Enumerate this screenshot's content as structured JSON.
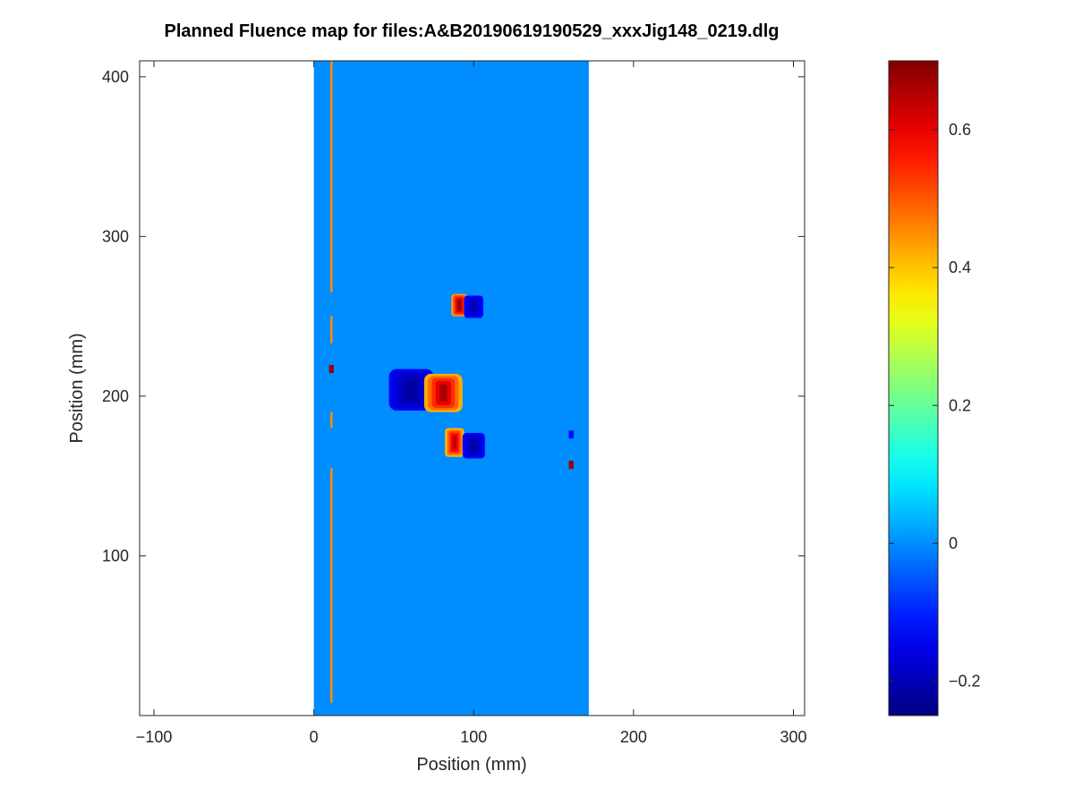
{
  "chart_data": {
    "type": "heatmap",
    "title": "Planned Fluence map for files:A&B20190619190529_xxxJig148_0219.dlg",
    "xlabel": "Position (mm)",
    "ylabel": "Position (mm)",
    "xlim": [
      -109,
      307
    ],
    "ylim": [
      0,
      410
    ],
    "xticks": [
      -100,
      0,
      100,
      200,
      300
    ],
    "xtick_labels": [
      "−100",
      "0",
      "100",
      "200",
      "300"
    ],
    "yticks": [
      100,
      200,
      300,
      400
    ],
    "ytick_labels": [
      "100",
      "200",
      "300",
      "400"
    ],
    "colormap": "jet",
    "clim": [
      -0.25,
      0.7
    ],
    "colorbar_ticks": [
      -0.2,
      0,
      0.2,
      0.4,
      0.6
    ],
    "colorbar_tick_labels": [
      "−0.2",
      "0",
      "0.2",
      "0.4",
      "0.6"
    ],
    "background_region": {
      "x": [
        0,
        172
      ],
      "y": [
        0,
        410
      ],
      "value": 0
    },
    "features": [
      {
        "kind": "strip",
        "x": 11,
        "width": 1.4,
        "y": [
          265,
          410
        ],
        "value": 0.45
      },
      {
        "kind": "strip",
        "x": 11,
        "width": 1.4,
        "y": [
          233,
          250
        ],
        "value": 0.45
      },
      {
        "kind": "strip",
        "x": 11,
        "width": 1.4,
        "y": [
          180,
          190
        ],
        "value": 0.45
      },
      {
        "kind": "strip",
        "x": 11,
        "width": 1.4,
        "y": [
          8,
          155
        ],
        "value": 0.45
      },
      {
        "kind": "blob",
        "cx": 61,
        "cy": 204,
        "rx": 14,
        "ry": 13,
        "value": -0.22
      },
      {
        "kind": "blob",
        "cx": 81,
        "cy": 202,
        "rx": 12,
        "ry": 12,
        "value": 0.66
      },
      {
        "kind": "blob",
        "cx": 91,
        "cy": 257,
        "rx": 5,
        "ry": 7,
        "value": 0.68
      },
      {
        "kind": "blob",
        "cx": 100,
        "cy": 256,
        "rx": 6,
        "ry": 7,
        "value": -0.2
      },
      {
        "kind": "blob",
        "cx": 88,
        "cy": 171,
        "rx": 6,
        "ry": 9,
        "value": 0.64
      },
      {
        "kind": "blob",
        "cx": 100,
        "cy": 169,
        "rx": 7,
        "ry": 8,
        "value": -0.21
      },
      {
        "kind": "pixel",
        "x": 11,
        "y": 217,
        "w": 3,
        "h": 5,
        "value": 0.68
      },
      {
        "kind": "pixel",
        "x": 161,
        "y": 176,
        "w": 3,
        "h": 5,
        "value": -0.12
      },
      {
        "kind": "pixel",
        "x": 161,
        "y": 157,
        "w": 3,
        "h": 5,
        "value": 0.68
      }
    ]
  }
}
